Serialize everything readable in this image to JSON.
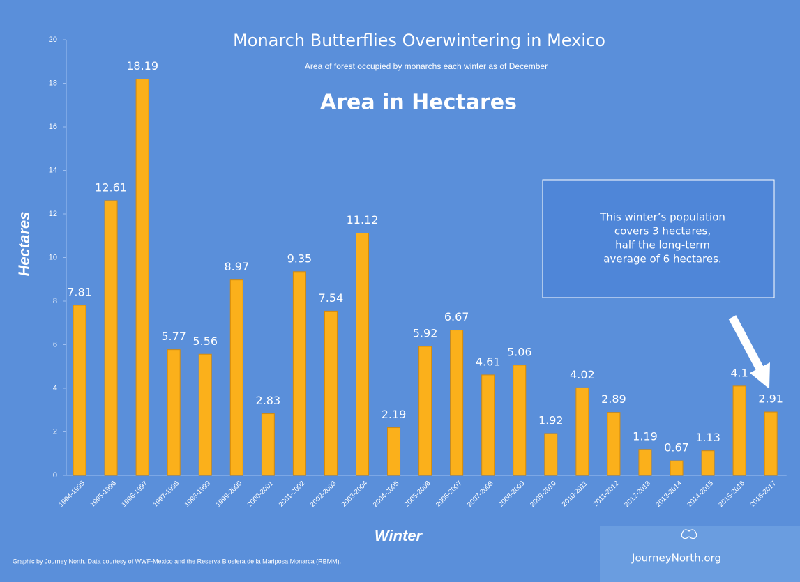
{
  "chart_data": {
    "type": "bar",
    "title": "Monarch Butterflies Overwintering in Mexico",
    "subtitle": "Area of forest occupied by monarchs each winter as of December",
    "heading": "Area in Hectares",
    "y_label": "Hectares",
    "x_label": "Winter",
    "categories": [
      "1994-1995",
      "1995-1996",
      "1996-1997",
      "1997-1998",
      "1998-1999",
      "1999-2000",
      "2000-2001",
      "2001-2002",
      "2002-2003",
      "2003-2004",
      "2004-2005",
      "2005-2006",
      "2006-2007",
      "2007-2008",
      "2008-2009",
      "2009-2010",
      "2010-2011",
      "2011-2012",
      "2012-2013",
      "2013-2014",
      "2014-2015",
      "2015-2016",
      "2016-2017"
    ],
    "values": [
      7.81,
      12.61,
      18.19,
      5.77,
      5.56,
      8.97,
      2.83,
      9.35,
      7.54,
      11.12,
      2.19,
      5.92,
      6.67,
      4.61,
      5.06,
      1.92,
      4.02,
      2.89,
      1.19,
      0.67,
      1.13,
      4.1,
      2.91
    ],
    "color": "#fbb01b",
    "ylim": [
      0,
      20
    ],
    "yticks": [
      0,
      2,
      4,
      6,
      8,
      10,
      12,
      14,
      16,
      18,
      20
    ],
    "grid": false,
    "annotation": [
      "This winter’s population",
      "covers 3 hectares,",
      "half the long-term",
      "average of 6 hectares."
    ],
    "credit": "Graphic by Journey North. Data courtesy of WWF-Mexico and the Reserva Biosfera de la Mariposa Monarca (RBMM).",
    "logo": "JourneyNorth.org"
  }
}
